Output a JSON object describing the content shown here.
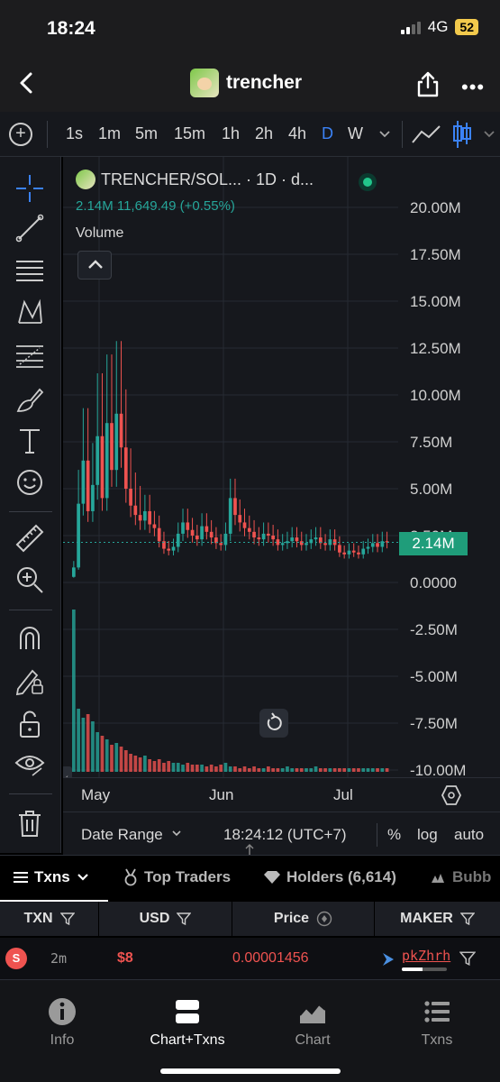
{
  "status_bar": {
    "time": "18:24",
    "network": "4G",
    "battery": "52"
  },
  "header": {
    "title": "trencher"
  },
  "intervals": [
    {
      "label": "1s",
      "active": false
    },
    {
      "label": "1m",
      "active": false
    },
    {
      "label": "5m",
      "active": false
    },
    {
      "label": "15m",
      "active": false
    },
    {
      "label": "1h",
      "active": false
    },
    {
      "label": "2h",
      "active": false
    },
    {
      "label": "4h",
      "active": false
    },
    {
      "label": "D",
      "active": true
    },
    {
      "label": "W",
      "active": false
    }
  ],
  "chart": {
    "legend": "TRENCHER/SOL... · 1D · d...",
    "ohlc": "2.14M  11,649.49 (+0.55%)",
    "volume_label": "Volume",
    "current_price": "2.14M",
    "accent_up": "#26a69a",
    "accent_down": "#ef5350"
  },
  "chart_data": {
    "type": "candlestick",
    "y_ticks": [
      "20.00M",
      "17.50M",
      "15.00M",
      "12.50M",
      "10.00M",
      "7.50M",
      "5.00M",
      "2.50M",
      "0.0000",
      "-2.50M",
      "-5.00M",
      "-7.50M",
      "-10.00M"
    ],
    "ylim": [
      -10000000,
      20000000
    ],
    "x_ticks": [
      "May",
      "Jun",
      "Jul"
    ],
    "last_value": 2140000,
    "approx_closes_millions": [
      0.8,
      4.2,
      6.5,
      3.8,
      5.2,
      7.8,
      4.5,
      8.5,
      6.0,
      9.0,
      7.2,
      5.0,
      4.1,
      3.6,
      3.3,
      3.8,
      3.1,
      2.9,
      2.2,
      1.8,
      1.7,
      1.9,
      2.6,
      3.2,
      2.8,
      2.5,
      2.3,
      3.0,
      2.7,
      2.4,
      2.1,
      2.0,
      2.6,
      4.5,
      3.6,
      3.2,
      2.9,
      2.7,
      2.4,
      2.3,
      2.6,
      2.5,
      2.3,
      2.0,
      2.1,
      2.2,
      2.4,
      2.2,
      2.0,
      2.1,
      2.3,
      2.4,
      2.1,
      2.0,
      2.3,
      2.0,
      1.6,
      1.5,
      1.7,
      1.6,
      1.5,
      1.8,
      1.9,
      2.1,
      1.9,
      2.2,
      2.14
    ],
    "approx_volumes_relative": [
      0.9,
      0.35,
      0.3,
      0.32,
      0.28,
      0.22,
      0.2,
      0.18,
      0.15,
      0.16,
      0.14,
      0.12,
      0.1,
      0.09,
      0.08,
      0.09,
      0.07,
      0.06,
      0.07,
      0.05,
      0.06,
      0.05,
      0.05,
      0.04,
      0.05,
      0.04,
      0.04,
      0.04,
      0.03,
      0.04,
      0.03,
      0.04,
      0.05,
      0.03,
      0.03,
      0.02,
      0.03,
      0.02,
      0.03,
      0.02,
      0.02,
      0.03,
      0.02,
      0.02,
      0.02,
      0.03,
      0.02,
      0.02,
      0.02,
      0.02,
      0.02,
      0.03,
      0.02,
      0.02,
      0.02,
      0.02,
      0.02,
      0.02,
      0.02,
      0.02,
      0.02,
      0.02,
      0.02,
      0.02,
      0.02,
      0.02,
      0.02
    ]
  },
  "range_bar": {
    "date_range": "Date Range",
    "time": "18:24:12 (UTC+7)",
    "percent": "%",
    "log": "log",
    "auto": "auto"
  },
  "tabs": {
    "txns": "Txns",
    "top_traders": "Top Traders",
    "holders": "Holders (6,614)",
    "bubble": "Bubb"
  },
  "table": {
    "headers": {
      "txn": "TXN",
      "usd": "USD",
      "price": "Price",
      "maker": "MAKER"
    },
    "rows": [
      {
        "type": "S",
        "age": "2m",
        "usd": "$8",
        "price": "0.00001456",
        "maker": "pkZhrh",
        "maker_bar_fraction": 0.45
      }
    ]
  },
  "bottom_nav": [
    {
      "label": "Info",
      "icon": "info-icon",
      "active": false
    },
    {
      "label": "Chart+Txns",
      "icon": "chart-txns-icon",
      "active": true
    },
    {
      "label": "Chart",
      "icon": "chart-icon",
      "active": false
    },
    {
      "label": "Txns",
      "icon": "list-icon",
      "active": false
    }
  ]
}
